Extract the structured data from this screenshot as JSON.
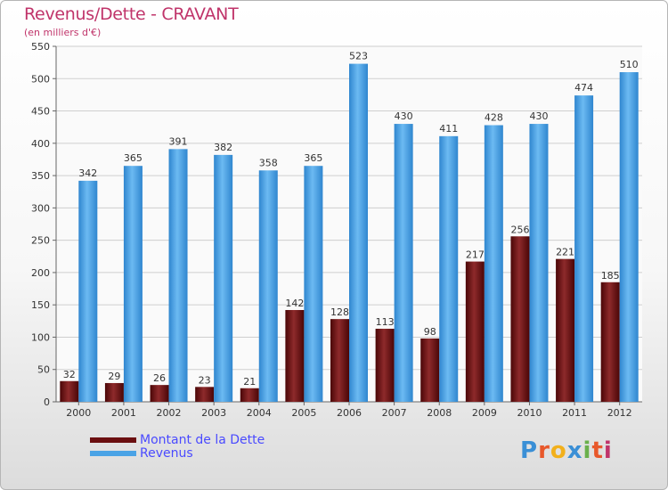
{
  "header": {
    "title": "Revenus/Dette - CRAVANT",
    "subtitle": "(en milliers d'€)"
  },
  "legend": {
    "debt_label": "Montant de la Dette",
    "revenue_label": "Revenus"
  },
  "logo": {
    "text": "Proxiti",
    "letters": [
      "P",
      "r",
      "o",
      "x",
      "i",
      "t",
      "i"
    ],
    "colors": [
      "#3a8fd6",
      "#e8582b",
      "#f2b01c",
      "#3a8fd6",
      "#6ab04c",
      "#e8582b",
      "#c0346a"
    ]
  },
  "colors": {
    "debt": "#6b0f10",
    "revenue": "#4aa3e6"
  },
  "chart_data": {
    "type": "bar",
    "title": "Revenus/Dette - CRAVANT",
    "subtitle": "(en milliers d'€)",
    "categories": [
      "2000",
      "2001",
      "2002",
      "2003",
      "2004",
      "2005",
      "2006",
      "2007",
      "2008",
      "2009",
      "2010",
      "2011",
      "2012"
    ],
    "series": [
      {
        "name": "Montant de la Dette",
        "values": [
          32,
          29,
          26,
          23,
          21,
          142,
          128,
          113,
          98,
          217,
          256,
          221,
          185
        ]
      },
      {
        "name": "Revenus",
        "values": [
          342,
          365,
          391,
          382,
          358,
          365,
          523,
          430,
          411,
          428,
          430,
          474,
          510
        ]
      }
    ],
    "ylim": [
      0,
      550
    ],
    "yticks": [
      0,
      50,
      100,
      150,
      200,
      250,
      300,
      350,
      400,
      450,
      500,
      550
    ],
    "grid": true,
    "legend_position": "bottom-left"
  }
}
